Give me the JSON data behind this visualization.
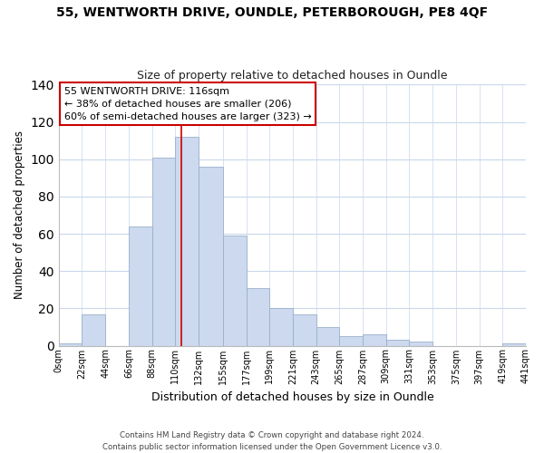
{
  "title": "55, WENTWORTH DRIVE, OUNDLE, PETERBOROUGH, PE8 4QF",
  "subtitle": "Size of property relative to detached houses in Oundle",
  "xlabel": "Distribution of detached houses by size in Oundle",
  "ylabel": "Number of detached properties",
  "bar_color": "#ccd9ee",
  "bar_edge_color": "#9ab0cc",
  "bin_edges": [
    0,
    22,
    44,
    66,
    88,
    110,
    132,
    155,
    177,
    199,
    221,
    243,
    265,
    287,
    309,
    331,
    353,
    375,
    397,
    419,
    441
  ],
  "bar_heights": [
    1,
    17,
    0,
    64,
    101,
    112,
    96,
    59,
    31,
    20,
    17,
    10,
    5,
    6,
    3,
    2,
    0,
    0,
    0,
    1
  ],
  "tick_labels": [
    "0sqm",
    "22sqm",
    "44sqm",
    "66sqm",
    "88sqm",
    "110sqm",
    "132sqm",
    "155sqm",
    "177sqm",
    "199sqm",
    "221sqm",
    "243sqm",
    "265sqm",
    "287sqm",
    "309sqm",
    "331sqm",
    "353sqm",
    "375sqm",
    "397sqm",
    "419sqm",
    "441sqm"
  ],
  "vline_x": 116,
  "vline_color": "#cc0000",
  "annotation_title": "55 WENTWORTH DRIVE: 116sqm",
  "annotation_line1": "← 38% of detached houses are smaller (206)",
  "annotation_line2": "60% of semi-detached houses are larger (323) →",
  "annotation_box_color": "#ffffff",
  "annotation_box_edge": "#cc0000",
  "ylim": [
    0,
    140
  ],
  "yticks": [
    0,
    20,
    40,
    60,
    80,
    100,
    120,
    140
  ],
  "footer1": "Contains HM Land Registry data © Crown copyright and database right 2024.",
  "footer2": "Contains public sector information licensed under the Open Government Licence v3.0.",
  "bg_color": "#ffffff",
  "grid_color": "#c8d8ec"
}
